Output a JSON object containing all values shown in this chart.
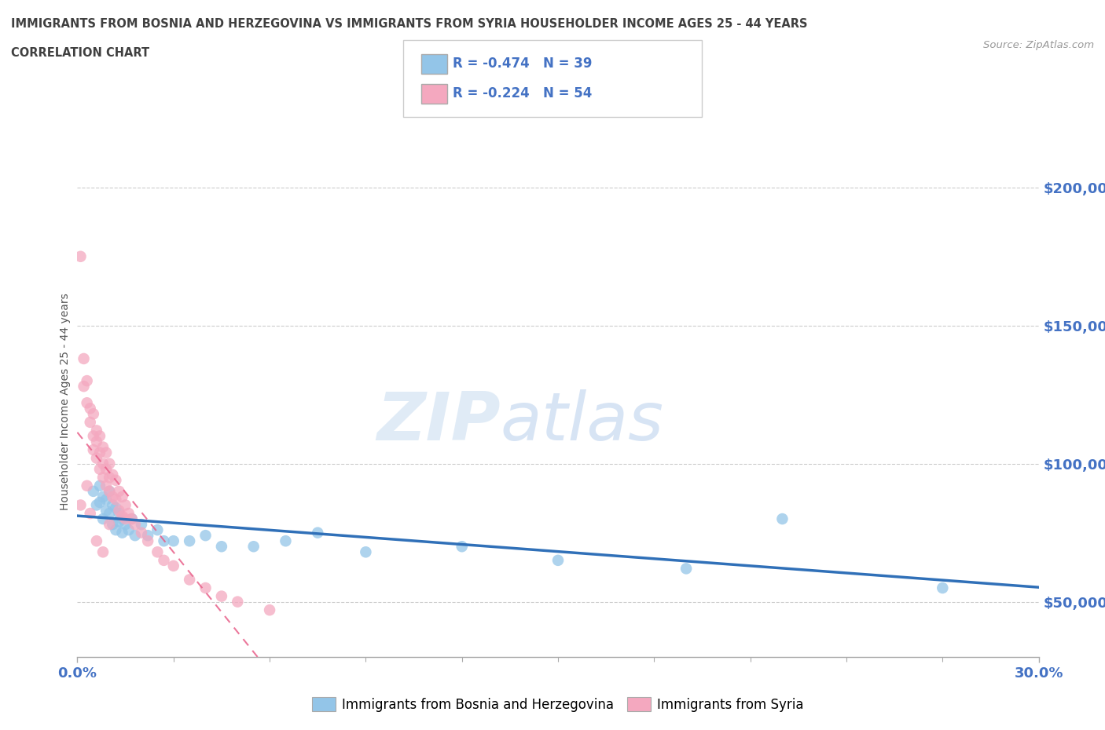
{
  "title_line1": "IMMIGRANTS FROM BOSNIA AND HERZEGOVINA VS IMMIGRANTS FROM SYRIA HOUSEHOLDER INCOME AGES 25 - 44 YEARS",
  "title_line2": "CORRELATION CHART",
  "source_text": "Source: ZipAtlas.com",
  "ylabel": "Householder Income Ages 25 - 44 years",
  "xlim": [
    0.0,
    0.3
  ],
  "ylim": [
    30000,
    215000
  ],
  "ytick_labels": [
    "$50,000",
    "$100,000",
    "$150,000",
    "$200,000"
  ],
  "ytick_values": [
    50000,
    100000,
    150000,
    200000
  ],
  "watermark_zip": "ZIP",
  "watermark_atlas": "atlas",
  "bosnia_R": "-0.474",
  "bosnia_N": "39",
  "syria_R": "-0.224",
  "syria_N": "54",
  "bosnia_color": "#93c5e8",
  "syria_color": "#f4a8bf",
  "bosnia_line_color": "#3070b8",
  "syria_line_color": "#e8608a",
  "axis_label_color": "#4472c4",
  "title_color": "#404040",
  "bosnia_x": [
    0.005,
    0.006,
    0.007,
    0.007,
    0.008,
    0.008,
    0.009,
    0.009,
    0.01,
    0.01,
    0.011,
    0.011,
    0.012,
    0.012,
    0.013,
    0.013,
    0.014,
    0.014,
    0.015,
    0.016,
    0.017,
    0.018,
    0.02,
    0.022,
    0.025,
    0.027,
    0.03,
    0.035,
    0.04,
    0.045,
    0.055,
    0.065,
    0.075,
    0.09,
    0.12,
    0.15,
    0.19,
    0.22,
    0.27
  ],
  "bosnia_y": [
    90000,
    85000,
    92000,
    86000,
    88000,
    80000,
    87000,
    83000,
    90000,
    82000,
    85000,
    78000,
    84000,
    76000,
    82000,
    79000,
    80000,
    75000,
    78000,
    76000,
    80000,
    74000,
    78000,
    74000,
    76000,
    72000,
    72000,
    72000,
    74000,
    70000,
    70000,
    72000,
    75000,
    68000,
    70000,
    65000,
    62000,
    80000,
    55000
  ],
  "syria_x": [
    0.001,
    0.002,
    0.002,
    0.003,
    0.003,
    0.004,
    0.004,
    0.005,
    0.005,
    0.005,
    0.006,
    0.006,
    0.006,
    0.007,
    0.007,
    0.007,
    0.008,
    0.008,
    0.008,
    0.009,
    0.009,
    0.009,
    0.01,
    0.01,
    0.01,
    0.011,
    0.011,
    0.012,
    0.012,
    0.013,
    0.013,
    0.014,
    0.014,
    0.015,
    0.015,
    0.016,
    0.017,
    0.018,
    0.02,
    0.022,
    0.025,
    0.027,
    0.03,
    0.035,
    0.04,
    0.045,
    0.05,
    0.06,
    0.001,
    0.003,
    0.004,
    0.006,
    0.008,
    0.01
  ],
  "syria_y": [
    175000,
    138000,
    128000,
    130000,
    122000,
    120000,
    115000,
    118000,
    110000,
    105000,
    112000,
    108000,
    102000,
    110000,
    104000,
    98000,
    106000,
    100000,
    95000,
    104000,
    98000,
    92000,
    100000,
    95000,
    90000,
    96000,
    88000,
    94000,
    87000,
    90000,
    83000,
    88000,
    81000,
    85000,
    80000,
    82000,
    80000,
    78000,
    75000,
    72000,
    68000,
    65000,
    63000,
    58000,
    55000,
    52000,
    50000,
    47000,
    85000,
    92000,
    82000,
    72000,
    68000,
    78000
  ]
}
